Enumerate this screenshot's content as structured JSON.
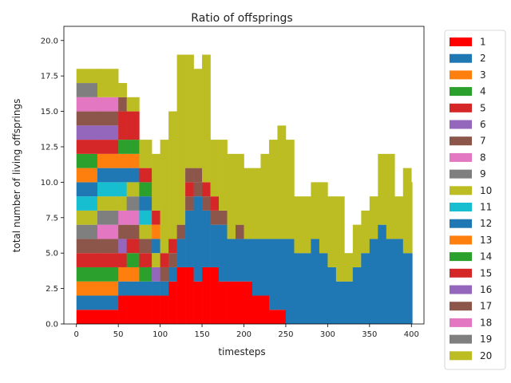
{
  "chart_data": {
    "type": "area",
    "stacked": true,
    "step": true,
    "title": "Ratio of offsprings",
    "xlabel": "timesteps",
    "ylabel": "total number of living offsprings",
    "xlim": [
      -15,
      415
    ],
    "ylim": [
      0,
      21
    ],
    "xticks": [
      0,
      50,
      100,
      150,
      200,
      250,
      300,
      350,
      400
    ],
    "yticks": [
      "0.0",
      "2.5",
      "5.0",
      "7.5",
      "10.0",
      "12.5",
      "15.0",
      "17.5",
      "20.0"
    ],
    "legend_position": "outside-right",
    "x": [
      0,
      25,
      50,
      60,
      75,
      90,
      100,
      110,
      120,
      130,
      140,
      150,
      160,
      170,
      180,
      190,
      200,
      210,
      220,
      230,
      240,
      250,
      260,
      270,
      280,
      290,
      300,
      310,
      320,
      330,
      340,
      350,
      360,
      370,
      380,
      390,
      400
    ],
    "series": [
      {
        "name": "1",
        "color": "#ff0000",
        "values": [
          1,
          1,
          2,
          2,
          2,
          2,
          2,
          3,
          4,
          4,
          3,
          4,
          4,
          3,
          3,
          3,
          3,
          2,
          2,
          1,
          1,
          0,
          0,
          0,
          0,
          0,
          0,
          0,
          0,
          0,
          0,
          0,
          0,
          0,
          0,
          0,
          0
        ]
      },
      {
        "name": "2",
        "color": "#1f77b4",
        "values": [
          1,
          1,
          1,
          1,
          1,
          1,
          1,
          1,
          2,
          4,
          6,
          4,
          3,
          4,
          3,
          3,
          3,
          4,
          4,
          5,
          5,
          6,
          5,
          5,
          6,
          5,
          4,
          3,
          3,
          4,
          5,
          6,
          7,
          6,
          6,
          5,
          5
        ]
      },
      {
        "name": "3",
        "color": "#ff7f0e",
        "values": [
          1,
          1,
          1,
          1,
          0,
          0,
          0,
          0,
          0,
          0,
          0,
          0,
          0,
          0,
          0,
          0,
          0,
          0,
          0,
          0,
          0,
          0,
          0,
          0,
          0,
          0,
          0,
          0,
          0,
          0,
          0,
          0,
          0,
          0,
          0,
          0,
          0
        ]
      },
      {
        "name": "4",
        "color": "#2ca02c",
        "values": [
          1,
          1,
          0,
          1,
          1,
          0,
          0,
          0,
          0,
          0,
          0,
          0,
          0,
          0,
          0,
          0,
          0,
          0,
          0,
          0,
          0,
          0,
          0,
          0,
          0,
          0,
          0,
          0,
          0,
          0,
          0,
          0,
          0,
          0,
          0,
          0,
          0
        ]
      },
      {
        "name": "5",
        "color": "#d62728",
        "values": [
          1,
          1,
          1,
          1,
          1,
          0,
          0,
          0,
          0,
          0,
          0,
          0,
          0,
          0,
          0,
          0,
          0,
          0,
          0,
          0,
          0,
          0,
          0,
          0,
          0,
          0,
          0,
          0,
          0,
          0,
          0,
          0,
          0,
          0,
          0,
          0,
          0
        ]
      },
      {
        "name": "6",
        "color": "#9467bd",
        "values": [
          0,
          0,
          1,
          0,
          0,
          1,
          0,
          0,
          0,
          0,
          0,
          0,
          0,
          0,
          0,
          0,
          0,
          0,
          0,
          0,
          0,
          0,
          0,
          0,
          0,
          0,
          0,
          0,
          0,
          0,
          0,
          0,
          0,
          0,
          0,
          0,
          0
        ]
      },
      {
        "name": "7",
        "color": "#8c564b",
        "values": [
          1,
          1,
          1,
          1,
          1,
          0,
          1,
          1,
          1,
          1,
          1,
          1,
          1,
          1,
          0,
          1,
          0,
          0,
          0,
          0,
          0,
          0,
          0,
          0,
          0,
          0,
          0,
          0,
          0,
          0,
          0,
          0,
          0,
          0,
          0,
          0,
          0
        ]
      },
      {
        "name": "8",
        "color": "#e377c2",
        "values": [
          0,
          1,
          1,
          1,
          0,
          0,
          0,
          0,
          0,
          0,
          0,
          0,
          0,
          0,
          0,
          0,
          0,
          0,
          0,
          0,
          0,
          0,
          0,
          0,
          0,
          0,
          0,
          0,
          0,
          0,
          0,
          0,
          0,
          0,
          0,
          0,
          0
        ]
      },
      {
        "name": "9",
        "color": "#7f7f7f",
        "values": [
          1,
          1,
          0,
          1,
          0,
          0,
          0,
          0,
          0,
          0,
          0,
          0,
          0,
          0,
          0,
          0,
          0,
          0,
          0,
          0,
          0,
          0,
          0,
          0,
          0,
          0,
          0,
          0,
          0,
          0,
          0,
          0,
          0,
          0,
          0,
          0,
          0
        ]
      },
      {
        "name": "10",
        "color": "#bcbd22",
        "values": [
          1,
          1,
          1,
          1,
          1,
          1,
          0,
          0,
          0,
          0,
          0,
          0,
          0,
          0,
          0,
          0,
          0,
          0,
          0,
          0,
          0,
          0,
          0,
          0,
          0,
          0,
          0,
          0,
          0,
          0,
          0,
          0,
          0,
          0,
          0,
          0,
          0
        ]
      },
      {
        "name": "11",
        "color": "#17becf",
        "values": [
          1,
          1,
          1,
          0,
          1,
          0,
          0,
          0,
          0,
          0,
          0,
          0,
          0,
          0,
          0,
          0,
          0,
          0,
          0,
          0,
          0,
          0,
          0,
          0,
          0,
          0,
          0,
          0,
          0,
          0,
          0,
          0,
          0,
          0,
          0,
          0,
          0
        ]
      },
      {
        "name": "12",
        "color": "#1f77b4",
        "values": [
          1,
          1,
          1,
          1,
          1,
          1,
          0,
          0,
          0,
          0,
          0,
          0,
          0,
          0,
          0,
          0,
          0,
          0,
          0,
          0,
          0,
          0,
          0,
          0,
          0,
          0,
          0,
          0,
          0,
          0,
          0,
          0,
          0,
          0,
          0,
          0,
          0
        ]
      },
      {
        "name": "13",
        "color": "#ff7f0e",
        "values": [
          1,
          1,
          1,
          1,
          0,
          1,
          0,
          0,
          0,
          0,
          0,
          0,
          0,
          0,
          0,
          0,
          0,
          0,
          0,
          0,
          0,
          0,
          0,
          0,
          0,
          0,
          0,
          0,
          0,
          0,
          0,
          0,
          0,
          0,
          0,
          0,
          0
        ]
      },
      {
        "name": "14",
        "color": "#2ca02c",
        "values": [
          1,
          0,
          1,
          1,
          1,
          0,
          0,
          0,
          0,
          0,
          0,
          0,
          0,
          0,
          0,
          0,
          0,
          0,
          0,
          0,
          0,
          0,
          0,
          0,
          0,
          0,
          0,
          0,
          0,
          0,
          0,
          0,
          0,
          0,
          0,
          0,
          0
        ]
      },
      {
        "name": "15",
        "color": "#d62728",
        "values": [
          1,
          1,
          2,
          2,
          1,
          1,
          1,
          1,
          0,
          1,
          0,
          1,
          1,
          0,
          0,
          0,
          0,
          0,
          0,
          0,
          0,
          0,
          0,
          0,
          0,
          0,
          0,
          0,
          0,
          0,
          0,
          0,
          0,
          0,
          0,
          0,
          0
        ]
      },
      {
        "name": "16",
        "color": "#9467bd",
        "values": [
          1,
          1,
          0,
          0,
          0,
          0,
          0,
          0,
          0,
          0,
          0,
          0,
          0,
          0,
          0,
          0,
          0,
          0,
          0,
          0,
          0,
          0,
          0,
          0,
          0,
          0,
          0,
          0,
          0,
          0,
          0,
          0,
          0,
          0,
          0,
          0,
          0
        ]
      },
      {
        "name": "17",
        "color": "#8c564b",
        "values": [
          1,
          1,
          1,
          0,
          0,
          0,
          0,
          0,
          0,
          1,
          1,
          0,
          0,
          0,
          0,
          0,
          0,
          0,
          0,
          0,
          0,
          0,
          0,
          0,
          0,
          0,
          0,
          0,
          0,
          0,
          0,
          0,
          0,
          0,
          0,
          0,
          0
        ]
      },
      {
        "name": "18",
        "color": "#e377c2",
        "values": [
          1,
          1,
          0,
          0,
          0,
          0,
          0,
          0,
          0,
          0,
          0,
          0,
          0,
          0,
          0,
          0,
          0,
          0,
          0,
          0,
          0,
          0,
          0,
          0,
          0,
          0,
          0,
          0,
          0,
          0,
          0,
          0,
          0,
          0,
          0,
          0,
          0
        ]
      },
      {
        "name": "19",
        "color": "#7f7f7f",
        "values": [
          1,
          0,
          0,
          0,
          0,
          0,
          0,
          0,
          0,
          0,
          0,
          0,
          0,
          0,
          0,
          0,
          0,
          0,
          0,
          0,
          0,
          0,
          0,
          0,
          0,
          0,
          0,
          0,
          0,
          0,
          0,
          0,
          0,
          0,
          0,
          0,
          0
        ]
      },
      {
        "name": "20",
        "color": "#bcbd22",
        "values": [
          1,
          2,
          1,
          1,
          2,
          4,
          8,
          9,
          12,
          8,
          7,
          9,
          4,
          5,
          6,
          5,
          5,
          5,
          6,
          7,
          8,
          7,
          4,
          4,
          4,
          5,
          5,
          6,
          2,
          3,
          3,
          3,
          5,
          6,
          3,
          6,
          5
        ]
      }
    ]
  }
}
